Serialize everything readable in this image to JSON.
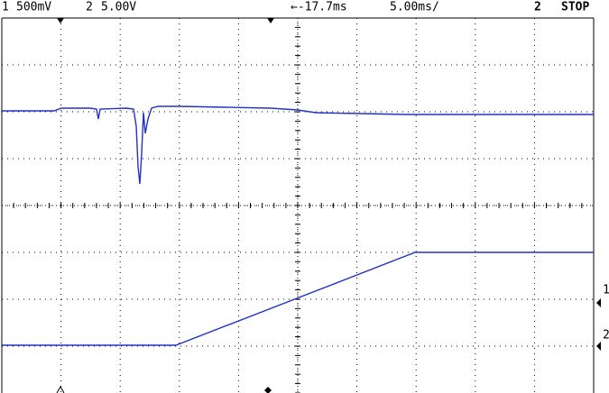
{
  "header": {
    "ch1": "1",
    "ch1_scale": "500mV",
    "ch2": "2",
    "ch2_scale": "5.00V",
    "trigger_position": "←-17.7ms",
    "timebase": "5.00ms/",
    "trigger_source": "2",
    "run_state": "STOP"
  },
  "markers": {
    "ch1_ground": "1",
    "ch2_ground": "2"
  }
}
